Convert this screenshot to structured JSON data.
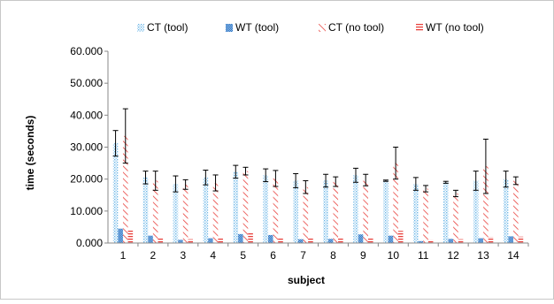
{
  "chart_data": {
    "type": "bar",
    "title": "",
    "xlabel": "subject",
    "ylabel": "time (seconds)",
    "ylim": [
      0,
      60
    ],
    "yticks": [
      "0.000",
      "10.000",
      "20.000",
      "30.000",
      "40.000",
      "50.000",
      "60.000"
    ],
    "grid": false,
    "legend_position": "top",
    "categories": [
      "1",
      "2",
      "3",
      "4",
      "5",
      "6",
      "7",
      "8",
      "9",
      "10",
      "11",
      "12",
      "13",
      "14"
    ],
    "series": [
      {
        "name": "CT (tool)",
        "color": "#6fb8e8",
        "pattern": "dots",
        "values": [
          31.2,
          20.5,
          18.5,
          20.5,
          22.3,
          21.2,
          19.5,
          19.5,
          21.2,
          19.5,
          18.5,
          19.0,
          19.5,
          20.0
        ],
        "errors": [
          4.0,
          2.0,
          2.5,
          2.3,
          2.0,
          2.0,
          2.2,
          2.0,
          2.2,
          0.2,
          2.0,
          0.3,
          3.0,
          2.5
        ]
      },
      {
        "name": "WT (tool)",
        "color": "#3a78c8",
        "pattern": "dense-dots",
        "values": [
          4.5,
          2.3,
          1.0,
          1.5,
          2.8,
          2.5,
          1.2,
          1.3,
          2.7,
          2.3,
          0.6,
          1.3,
          1.5,
          2.1
        ],
        "errors": [
          0,
          0,
          0,
          0,
          0,
          0,
          0,
          0,
          0,
          0,
          0,
          0,
          0,
          0
        ]
      },
      {
        "name": "CT (no tool)",
        "color": "#e8413c",
        "pattern": "diagonal",
        "values": [
          33.5,
          19.5,
          18.3,
          18.8,
          22.5,
          20.2,
          17.5,
          19.2,
          19.7,
          25.0,
          17.0,
          15.5,
          24.0,
          19.5
        ],
        "errors": [
          8.5,
          3.0,
          1.5,
          2.5,
          1.2,
          2.5,
          2.0,
          1.5,
          1.8,
          5.0,
          1.0,
          1.0,
          8.5,
          1.2
        ]
      },
      {
        "name": "WT (no tool)",
        "color": "#e8413c",
        "pattern": "horizontal",
        "values": [
          4.0,
          1.8,
          1.2,
          1.5,
          3.2,
          1.5,
          1.4,
          1.8,
          1.8,
          3.8,
          1.0,
          1.2,
          1.9,
          2.0
        ],
        "errors": [
          0,
          0,
          0,
          0,
          0,
          0,
          0,
          0,
          0,
          0,
          0,
          0,
          0,
          0
        ]
      }
    ]
  }
}
